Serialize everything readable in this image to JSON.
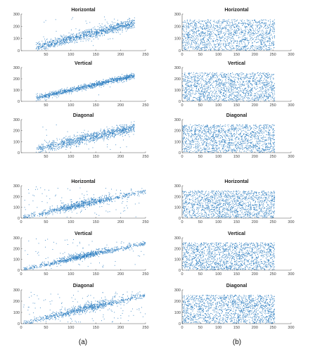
{
  "figure": {
    "captions": [
      "(a)",
      "(b)"
    ],
    "marker_color": "#2f7fc1"
  },
  "chart_data": [
    {
      "type": "scatter",
      "column": "a",
      "group": 1,
      "title": "Horizontal",
      "xlim": [
        0,
        250
      ],
      "ylim": [
        0,
        300
      ],
      "xticks": [
        50,
        100,
        150,
        200,
        250
      ],
      "yticks": [
        0,
        100,
        200,
        300
      ],
      "distribution": "correlated",
      "n": 1100,
      "x_range": [
        30,
        228
      ],
      "noise_sd": 20,
      "outlier_fraction": 0.02
    },
    {
      "type": "scatter",
      "column": "b",
      "group": 1,
      "title": "Horizontal",
      "xlim": [
        0,
        300
      ],
      "ylim": [
        0,
        300
      ],
      "xticks": [
        0,
        50,
        100,
        150,
        200,
        250,
        300
      ],
      "yticks": [
        0,
        100,
        200,
        300
      ],
      "distribution": "uniform",
      "n": 1600,
      "x_range": [
        0,
        255
      ],
      "y_range": [
        0,
        255
      ]
    },
    {
      "type": "scatter",
      "column": "a",
      "group": 1,
      "title": "Vertical",
      "xlim": [
        0,
        250
      ],
      "ylim": [
        0,
        300
      ],
      "xticks": [
        50,
        100,
        150,
        200,
        250
      ],
      "yticks": [
        0,
        100,
        200,
        300
      ],
      "distribution": "correlated",
      "n": 1100,
      "x_range": [
        30,
        228
      ],
      "noise_sd": 12,
      "outlier_fraction": 0.01
    },
    {
      "type": "scatter",
      "column": "b",
      "group": 1,
      "title": "Vertical",
      "xlim": [
        0,
        300
      ],
      "ylim": [
        0,
        300
      ],
      "xticks": [
        0,
        50,
        100,
        150,
        200,
        250,
        300
      ],
      "yticks": [
        0,
        100,
        200,
        300
      ],
      "distribution": "uniform",
      "n": 1600,
      "x_range": [
        0,
        255
      ],
      "y_range": [
        0,
        255
      ]
    },
    {
      "type": "scatter",
      "column": "a",
      "group": 1,
      "title": "Diagonal",
      "xlim": [
        0,
        250
      ],
      "ylim": [
        0,
        300
      ],
      "xticks": [
        50,
        100,
        150,
        200,
        250
      ],
      "yticks": [
        0,
        100,
        200,
        300
      ],
      "distribution": "correlated",
      "n": 1100,
      "x_range": [
        30,
        228
      ],
      "noise_sd": 22,
      "outlier_fraction": 0.02
    },
    {
      "type": "scatter",
      "column": "b",
      "group": 1,
      "title": "Diagonal",
      "xlim": [
        0,
        300
      ],
      "ylim": [
        0,
        300
      ],
      "xticks": [
        0,
        50,
        100,
        150,
        200,
        250,
        300
      ],
      "yticks": [
        0,
        100,
        200,
        300
      ],
      "distribution": "uniform",
      "n": 1600,
      "x_range": [
        0,
        255
      ],
      "y_range": [
        0,
        255
      ]
    },
    {
      "type": "scatter",
      "column": "a",
      "group": 2,
      "title": "Horizontal",
      "xlim": [
        0,
        250
      ],
      "ylim": [
        0,
        300
      ],
      "xticks": [
        0,
        50,
        100,
        150,
        200,
        250
      ],
      "yticks": [
        0,
        100,
        200,
        300
      ],
      "distribution": "clustered",
      "n": 1000,
      "cluster_center": [
        120,
        130
      ],
      "x_range": [
        5,
        250
      ],
      "noise_sd": 18,
      "outlier_fraction": 0.1
    },
    {
      "type": "scatter",
      "column": "b",
      "group": 2,
      "title": "Horizontal",
      "xlim": [
        0,
        300
      ],
      "ylim": [
        0,
        300
      ],
      "xticks": [
        0,
        50,
        100,
        150,
        200,
        250,
        300
      ],
      "yticks": [
        0,
        100,
        200,
        300
      ],
      "distribution": "uniform",
      "n": 1600,
      "x_range": [
        0,
        255
      ],
      "y_range": [
        0,
        255
      ]
    },
    {
      "type": "scatter",
      "column": "a",
      "group": 2,
      "title": "Vertical",
      "xlim": [
        0,
        250
      ],
      "ylim": [
        0,
        300
      ],
      "xticks": [
        0,
        50,
        100,
        150,
        200,
        250
      ],
      "yticks": [
        0,
        100,
        200,
        300
      ],
      "distribution": "clustered",
      "n": 1000,
      "cluster_center": [
        125,
        135
      ],
      "x_range": [
        5,
        250
      ],
      "noise_sd": 15,
      "outlier_fraction": 0.08
    },
    {
      "type": "scatter",
      "column": "b",
      "group": 2,
      "title": "Vertical",
      "xlim": [
        0,
        300
      ],
      "ylim": [
        0,
        300
      ],
      "xticks": [
        0,
        50,
        100,
        150,
        200,
        250,
        300
      ],
      "yticks": [
        0,
        100,
        200,
        300
      ],
      "distribution": "uniform",
      "n": 1600,
      "x_range": [
        0,
        255
      ],
      "y_range": [
        0,
        255
      ]
    },
    {
      "type": "scatter",
      "column": "a",
      "group": 2,
      "title": "Diagonal",
      "xlim": [
        0,
        250
      ],
      "ylim": [
        0,
        300
      ],
      "xticks": [
        0,
        50,
        100,
        150,
        200,
        250
      ],
      "yticks": [
        0,
        100,
        200,
        300
      ],
      "distribution": "clustered",
      "n": 1000,
      "cluster_center": [
        130,
        140
      ],
      "x_range": [
        5,
        250
      ],
      "noise_sd": 20,
      "outlier_fraction": 0.12
    },
    {
      "type": "scatter",
      "column": "b",
      "group": 2,
      "title": "Diagonal",
      "xlim": [
        0,
        300
      ],
      "ylim": [
        0,
        300
      ],
      "xticks": [
        0,
        50,
        100,
        150,
        200,
        250,
        300
      ],
      "yticks": [
        0,
        100,
        200,
        300
      ],
      "distribution": "uniform",
      "n": 1600,
      "x_range": [
        0,
        255
      ],
      "y_range": [
        0,
        255
      ]
    }
  ]
}
